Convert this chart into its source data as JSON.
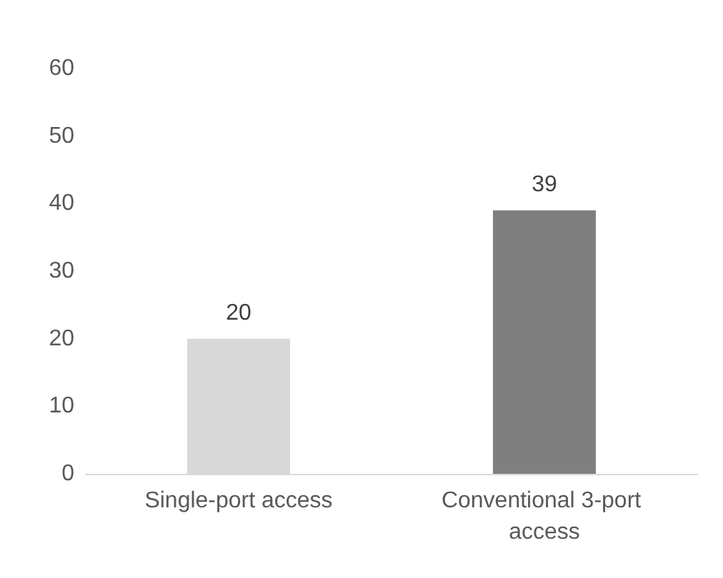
{
  "chart_data": {
    "type": "bar",
    "categories": [
      "Single-port access",
      "Conventional 3-port access"
    ],
    "values": [
      20,
      39
    ],
    "colors": [
      "#d9d9d9",
      "#7f7f7f"
    ],
    "ylim": [
      0,
      60
    ],
    "yticks": [
      0,
      10,
      20,
      30,
      40,
      50,
      60
    ],
    "data_labels": true
  }
}
